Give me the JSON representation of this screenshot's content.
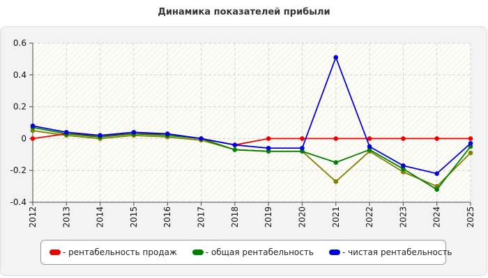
{
  "chart_data": {
    "type": "line",
    "title": "Динамика показателей прибыли",
    "xlabel": "",
    "ylabel": "",
    "x": [
      "2012",
      "2013",
      "2014",
      "2015",
      "2016",
      "2017",
      "2018",
      "2019",
      "2020",
      "2021",
      "2022",
      "2023",
      "2024",
      "2025"
    ],
    "ylim": [
      -0.4,
      0.6
    ],
    "yticks": [
      -0.4,
      -0.2,
      0,
      0.2,
      0.4,
      0.6
    ],
    "ytick_labels": [
      "-0.4",
      "-0.2",
      "0",
      "0.2",
      "0.4",
      "0.6"
    ],
    "grid": true,
    "legend_position": "bottom",
    "series": [
      {
        "name": "- рентабельность продаж",
        "color": "#ee0000",
        "values": [
          0.0,
          0.03,
          0.02,
          0.03,
          0.03,
          0.0,
          -0.04,
          0.0,
          0.0,
          0.0,
          0.0,
          0.0,
          0.0,
          0.0
        ]
      },
      {
        "name": "- общая рентабельность",
        "color": "#008000",
        "values": [
          0.07,
          0.03,
          0.01,
          0.03,
          0.02,
          0.0,
          -0.07,
          -0.08,
          -0.08,
          -0.15,
          -0.07,
          -0.19,
          -0.32,
          -0.05
        ]
      },
      {
        "name": "- чистая рентабельность",
        "color": "#0000dd",
        "values": [
          0.08,
          0.04,
          0.02,
          0.04,
          0.03,
          0.0,
          -0.04,
          -0.06,
          -0.06,
          0.51,
          -0.05,
          -0.17,
          -0.22,
          -0.03
        ]
      },
      {
        "name": "",
        "color": "#808000",
        "values": [
          0.05,
          0.02,
          0.0,
          0.02,
          0.01,
          -0.01,
          -0.07,
          -0.08,
          -0.08,
          -0.27,
          -0.08,
          -0.21,
          -0.3,
          -0.09
        ]
      }
    ]
  }
}
